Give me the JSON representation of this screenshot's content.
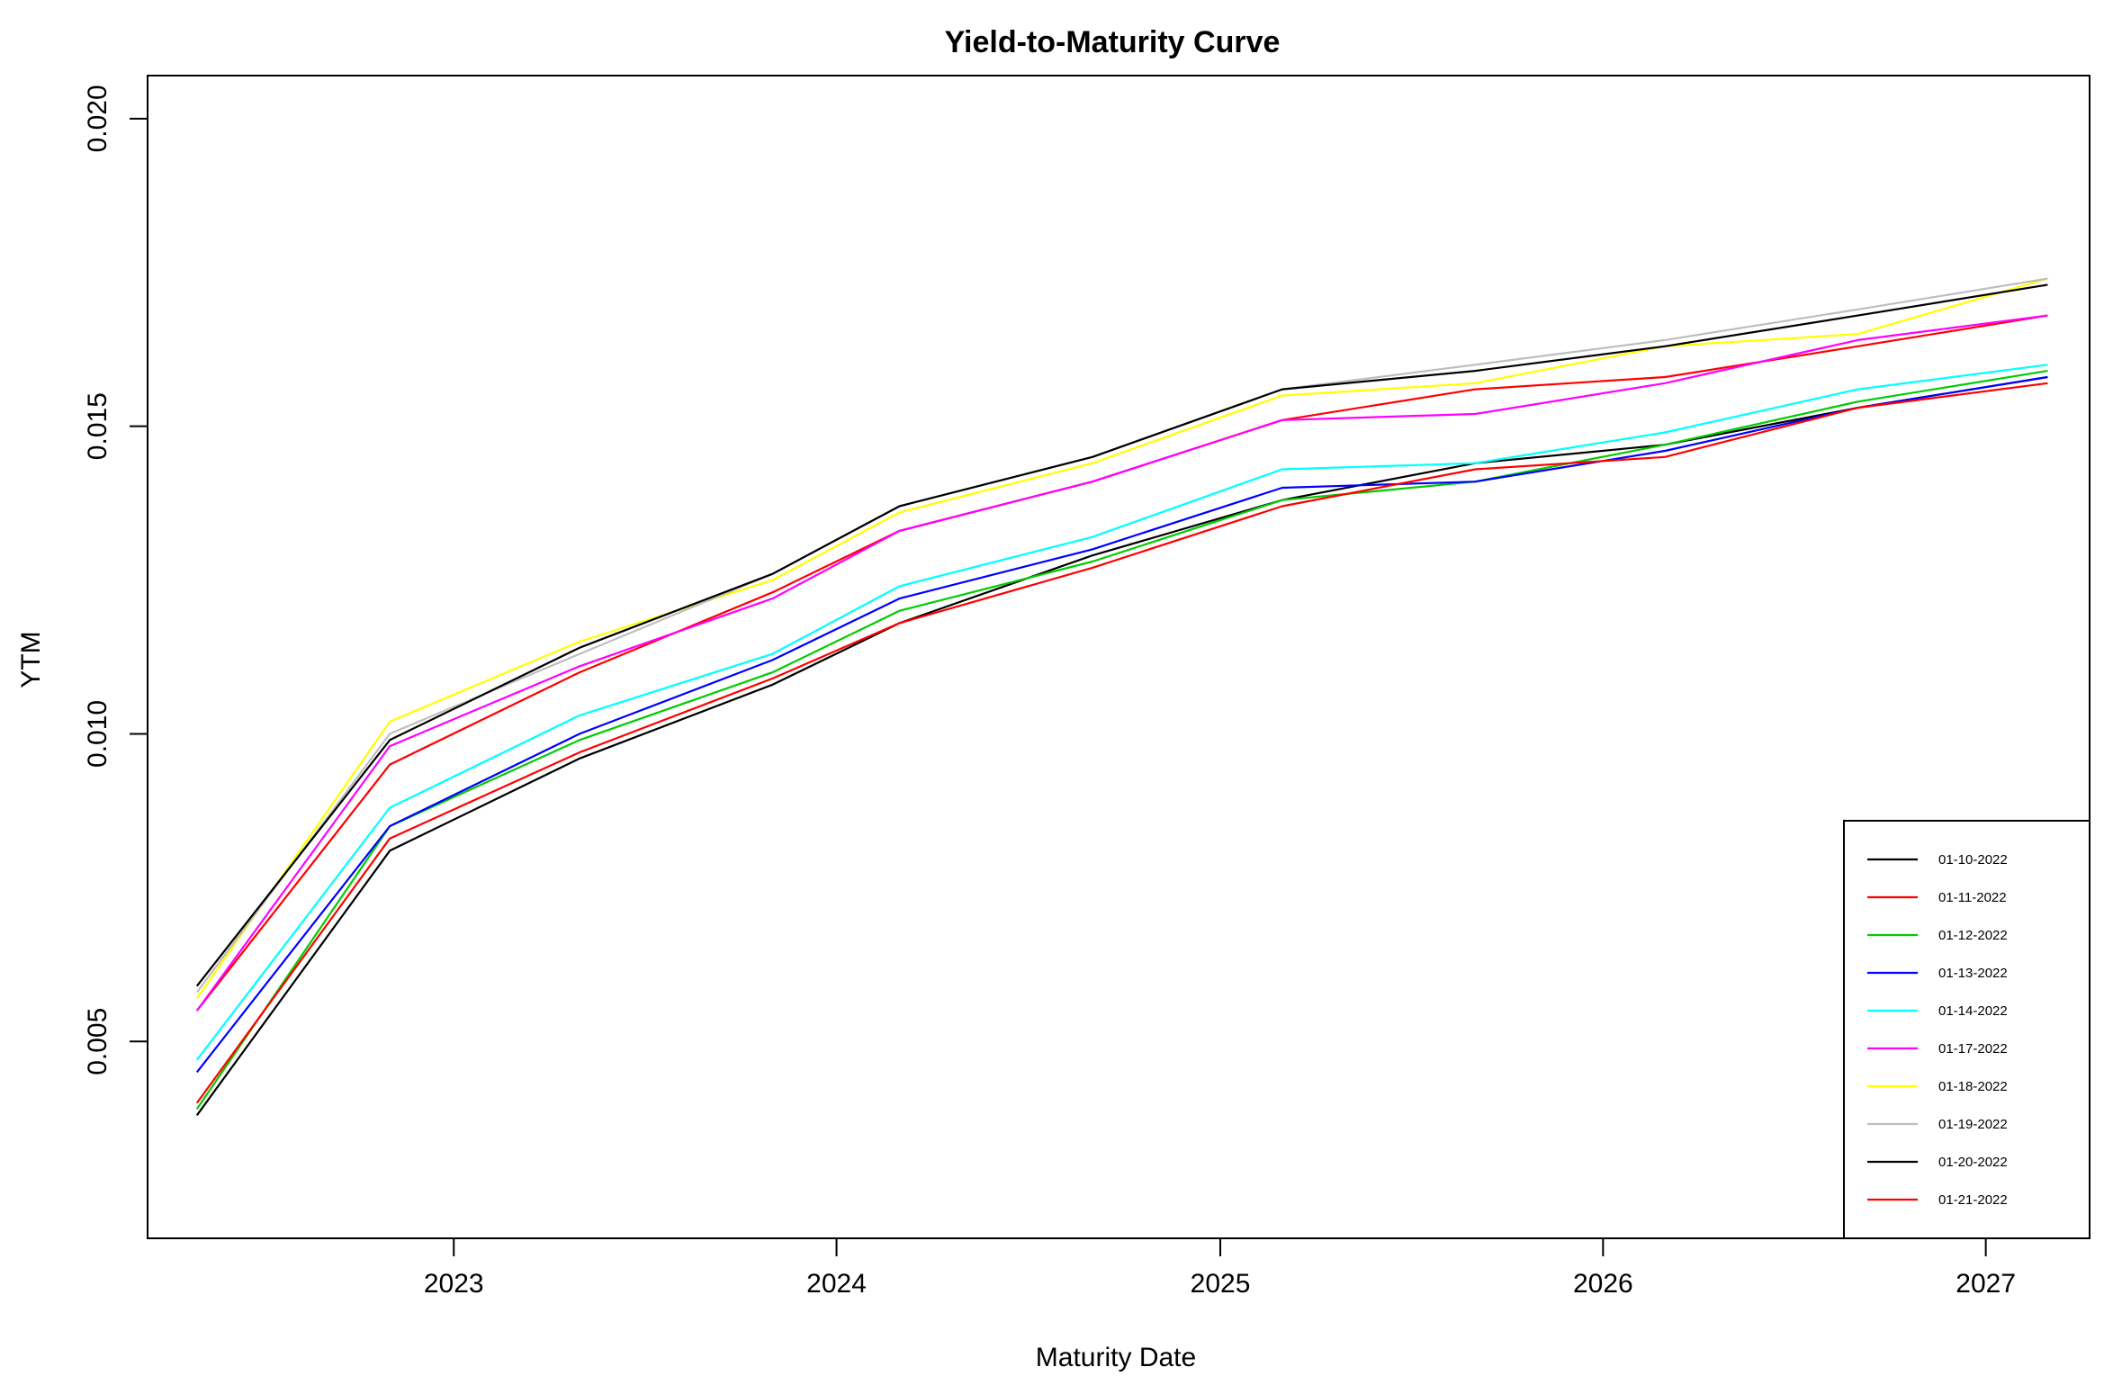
{
  "chart_data": {
    "type": "line",
    "title": "Yield-to-Maturity Curve",
    "xlabel": "Maturity Date",
    "ylabel": "YTM",
    "x_ticks": [
      "2023",
      "2024",
      "2025",
      "2026",
      "2027"
    ],
    "y_ticks": [
      "0.005",
      "0.010",
      "0.015",
      "0.020"
    ],
    "xlim": [
      "2022-03-15",
      "2027-04-10"
    ],
    "ylim": [
      0.0018,
      0.0207
    ],
    "grid": false,
    "legend_position": "bottom-right",
    "x": [
      "2022-05-01",
      "2022-11-01",
      "2023-05-01",
      "2023-11-01",
      "2024-03-01",
      "2024-09-01",
      "2025-03-01",
      "2025-09-01",
      "2026-03-01",
      "2026-09-01",
      "2027-03-01"
    ],
    "series": [
      {
        "name": "01-10-2022",
        "color": "#000000",
        "values": [
          0.0038,
          0.0081,
          0.0096,
          0.0108,
          0.0118,
          0.0129,
          0.0138,
          0.0144,
          0.0147,
          0.0153,
          0.0158
        ]
      },
      {
        "name": "01-11-2022",
        "color": "#ff0000",
        "values": [
          0.0055,
          0.0095,
          0.011,
          0.0123,
          0.0133,
          0.0141,
          0.0151,
          0.0156,
          0.0158,
          0.0163,
          0.0168
        ]
      },
      {
        "name": "01-12-2022",
        "color": "#00cc00",
        "values": [
          0.0039,
          0.0085,
          0.0099,
          0.011,
          0.012,
          0.0128,
          0.0138,
          0.0141,
          0.0147,
          0.0154,
          0.0159
        ]
      },
      {
        "name": "01-13-2022",
        "color": "#0000ff",
        "values": [
          0.0045,
          0.0085,
          0.01,
          0.0112,
          0.0122,
          0.013,
          0.014,
          0.0141,
          0.0146,
          0.0153,
          0.0158
        ]
      },
      {
        "name": "01-14-2022",
        "color": "#00ffff",
        "values": [
          0.0047,
          0.0088,
          0.0103,
          0.0113,
          0.0124,
          0.0132,
          0.0143,
          0.0144,
          0.0149,
          0.0156,
          0.016
        ]
      },
      {
        "name": "01-17-2022",
        "color": "#ff00ff",
        "values": [
          0.0055,
          0.0098,
          0.0111,
          0.0122,
          0.0133,
          0.0141,
          0.0151,
          0.0152,
          0.0157,
          0.0164,
          0.0168
        ]
      },
      {
        "name": "01-18-2022",
        "color": "#ffff00",
        "values": [
          0.0057,
          0.0102,
          0.0115,
          0.0125,
          0.0136,
          0.0144,
          0.0155,
          0.0157,
          0.0163,
          0.0165,
          0.0174
        ]
      },
      {
        "name": "01-19-2022",
        "color": "#bebebe",
        "values": [
          0.0058,
          0.01,
          0.0113,
          0.0126,
          0.0137,
          0.0145,
          0.0156,
          0.016,
          0.0164,
          0.0169,
          0.0174
        ]
      },
      {
        "name": "01-20-2022",
        "color": "#000000",
        "values": [
          0.0059,
          0.0099,
          0.0114,
          0.0126,
          0.0137,
          0.0145,
          0.0156,
          0.0159,
          0.0163,
          0.0168,
          0.0173
        ]
      },
      {
        "name": "01-21-2022",
        "color": "#ff0000",
        "values": [
          0.004,
          0.0083,
          0.0097,
          0.0109,
          0.0118,
          0.0127,
          0.0137,
          0.0143,
          0.0145,
          0.0153,
          0.0157
        ]
      }
    ]
  }
}
